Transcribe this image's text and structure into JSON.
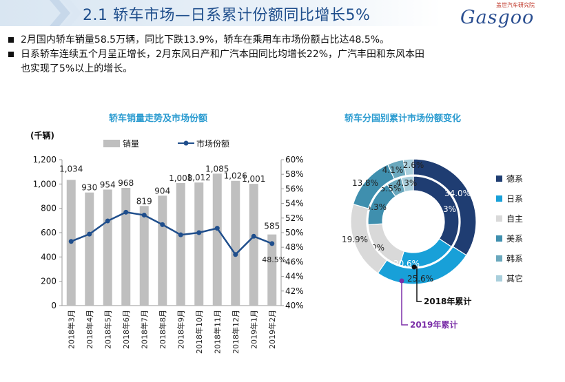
{
  "header": {
    "title": "2.1 轿车市场—日系累计份额同比增长5%",
    "logo_top": "盖世汽车研究院",
    "logo_main": "Gasgoo"
  },
  "bullets": [
    "2月国内轿车销量58.5万辆，同比下跌13.9%，轿车在乘用车市场份额占比达48.5%。",
    "日系轿车连续五个月呈正增长，2月东风日产和广汽本田同比均增长22%，广汽丰田和东风本田",
    "也实现了5%以上的增长。"
  ],
  "chart_data": [
    {
      "type": "bar",
      "title": "轿车销量走势及市场份额",
      "ylabel": "(千辆)",
      "categories": [
        "2018年3月",
        "2018年4月",
        "2018年5月",
        "2018年6月",
        "2018年7月",
        "2018年8月",
        "2018年9月",
        "2018年10月",
        "2018年11月",
        "2018年12月",
        "2019年1月",
        "2019年2月"
      ],
      "series": [
        {
          "name": "销量",
          "type": "bar",
          "color": "#bfbfbf",
          "values": [
            1034,
            930,
            954,
            968,
            819,
            904,
            1008,
            1012,
            1085,
            1026,
            1001,
            585
          ],
          "labels": [
            "1,034",
            "930",
            "954",
            "968",
            "819",
            "904",
            "1,008",
            "1,012",
            "1,085",
            "1,026",
            "1,001",
            "585"
          ]
        },
        {
          "name": "市场份额",
          "type": "line",
          "color": "#1f4e8c",
          "axis": "right",
          "values": [
            48.8,
            49.8,
            51.6,
            52.8,
            52.4,
            51.1,
            49.7,
            50.0,
            50.6,
            47.0,
            49.5,
            48.5
          ],
          "labels": [
            "",
            "",
            "",
            "",
            "",
            "",
            "",
            "",
            "",
            "",
            "",
            "48.5%"
          ]
        }
      ],
      "ylim": [
        0,
        1200
      ],
      "yticks": [
        "0",
        "200",
        "400",
        "600",
        "800",
        "1,000",
        "1,200"
      ],
      "y2lim": [
        40,
        60
      ],
      "y2ticks": [
        "40%",
        "42%",
        "44%",
        "46%",
        "48%",
        "50%",
        "52%",
        "54%",
        "56%",
        "58%",
        "60%"
      ],
      "legend_position": "top-left",
      "grid": false
    },
    {
      "type": "pie",
      "title": "轿车分国别累计市场份额变化",
      "donut": true,
      "categories": [
        "德系",
        "日系",
        "自主",
        "美系",
        "韩系",
        "其它"
      ],
      "colors": [
        "#1f3d72",
        "#18a0d8",
        "#d9d9d9",
        "#3f8fae",
        "#6aa8bd",
        "#a9cfdc"
      ],
      "series": [
        {
          "name": "2018年累计",
          "values": [
            34.3,
            20.6,
            19.0,
            16.3,
            5.5,
            4.3
          ],
          "labels": [
            "34.3%",
            "20.6%",
            "19.0%",
            "16.3%",
            "5.5%",
            "4.3%"
          ]
        },
        {
          "name": "2019年累计",
          "values": [
            34.0,
            25.6,
            19.9,
            13.8,
            4.1,
            2.6
          ],
          "labels": [
            "34.0%",
            "25.6%",
            "19.9%",
            "13.8%",
            "4.1%",
            "2.6%"
          ]
        }
      ],
      "annotations": [
        "2018年累计",
        "2019年累计"
      ],
      "legend_position": "right"
    }
  ],
  "colors": {
    "title_blue": "#1f4e8c",
    "chart_title": "#2a9bd0",
    "annotation_purple": "#7b2fa8"
  }
}
